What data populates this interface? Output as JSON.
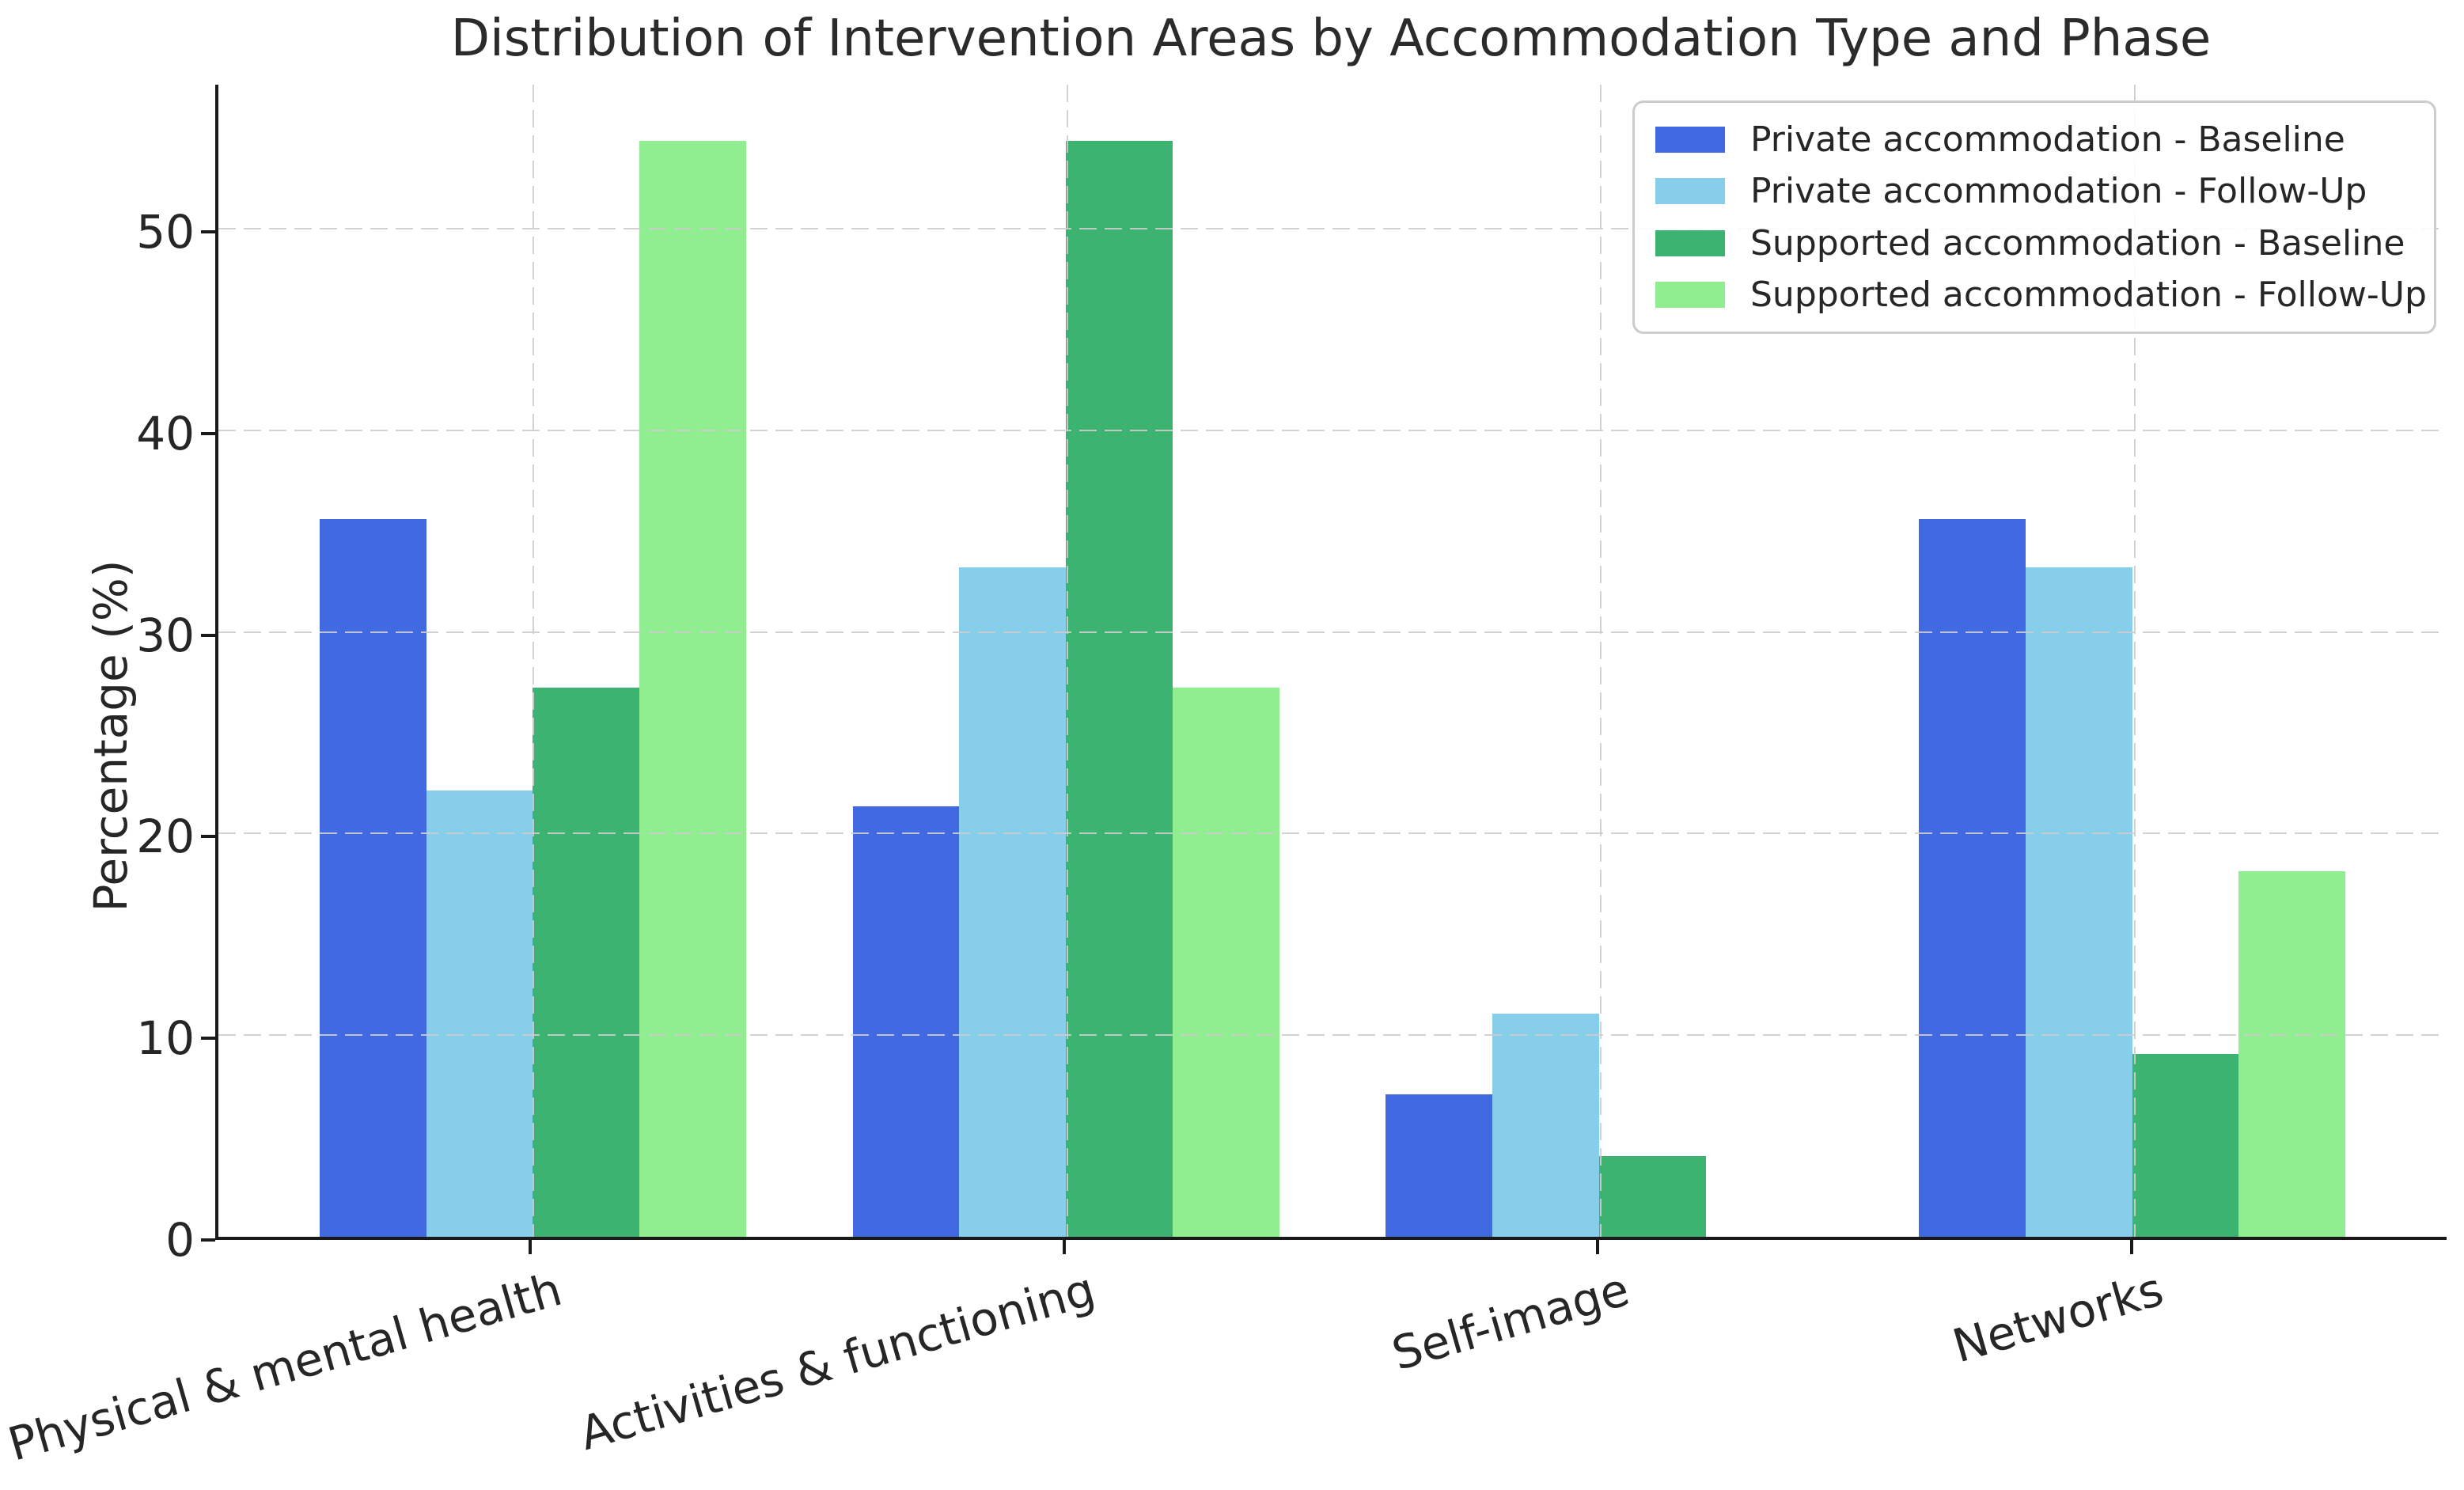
{
  "chart_data": {
    "type": "bar",
    "title": "Distribution of Intervention Areas by Accommodation Type and Phase",
    "xlabel": "",
    "ylabel": "Percentage (%)",
    "categories": [
      "Physical & mental health",
      "Activities & functioning",
      "Self-image",
      "Networks"
    ],
    "series": [
      {
        "name": "Private accommodation - Baseline",
        "color": "#4169E1",
        "values": [
          35.7,
          21.4,
          7.1,
          35.7
        ]
      },
      {
        "name": "Private accommodation - Follow-Up",
        "color": "#87CEEB",
        "values": [
          22.2,
          33.3,
          11.1,
          33.3
        ]
      },
      {
        "name": "Supported accommodation - Baseline",
        "color": "#3CB371",
        "values": [
          27.3,
          54.5,
          4.0,
          9.1
        ]
      },
      {
        "name": "Supported accommodation - Follow-Up",
        "color": "#90EE90",
        "values": [
          54.5,
          27.3,
          0,
          18.2
        ]
      }
    ],
    "yticks": [
      0,
      10,
      20,
      30,
      40,
      50
    ],
    "ylim": [
      0,
      57.3
    ],
    "xlim": [
      -0.59,
      3.59
    ],
    "bar_width": 0.2,
    "grid": "dashed",
    "grid_color": "#cccccc",
    "legend_position": "upper right",
    "text_color": "#262626"
  }
}
